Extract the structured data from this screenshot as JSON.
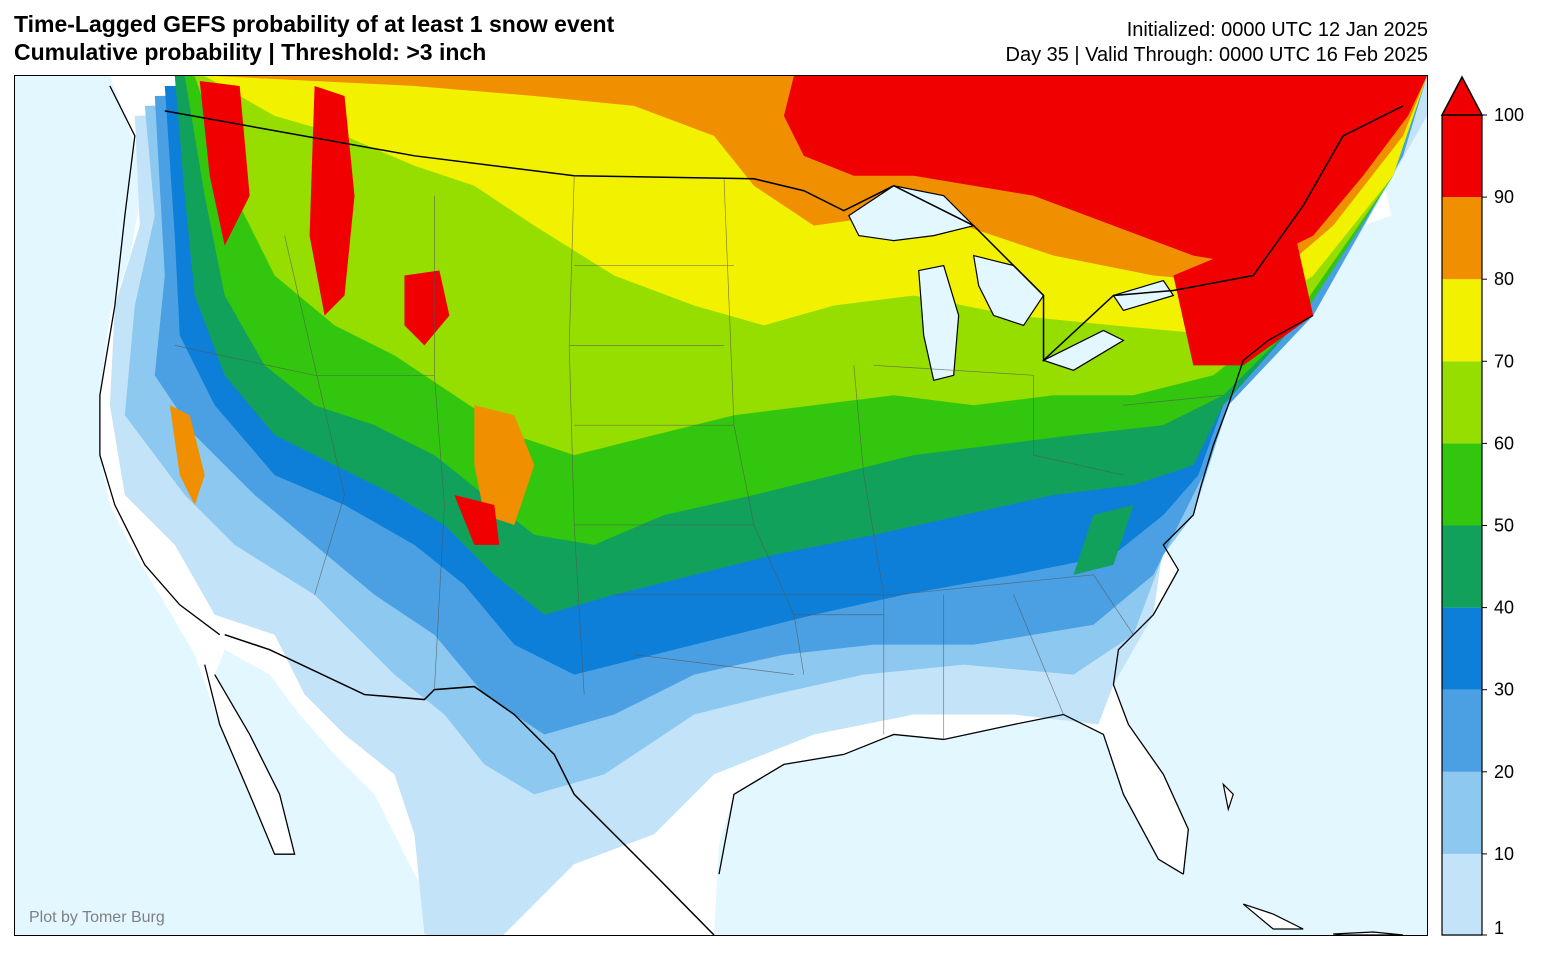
{
  "title": {
    "line1": "Time-Lagged GEFS probability of at least 1 snow event",
    "line2": "Cumulative probability | Threshold: >3 inch"
  },
  "meta": {
    "initialized": "Initialized: 0000 UTC 12 Jan 2025",
    "valid": "Day 35 | Valid Through: 0000 UTC 16 Feb 2025"
  },
  "credit": "Plot by Tomer Burg",
  "colorbar": {
    "ticks": [
      "1",
      "10",
      "20",
      "30",
      "40",
      "50",
      "60",
      "70",
      "80",
      "90",
      "100"
    ],
    "colors": [
      "#c3e3f8",
      "#8cc8f0",
      "#4aa0e3",
      "#0e7fd8",
      "#12a15a",
      "#33c60e",
      "#96dd00",
      "#f2f200",
      "#f09000",
      "#f00000"
    ],
    "extend_max": true
  },
  "map": {
    "ocean_color": "#e2f7ff",
    "land_zero_color": "#ffffff"
  }
}
